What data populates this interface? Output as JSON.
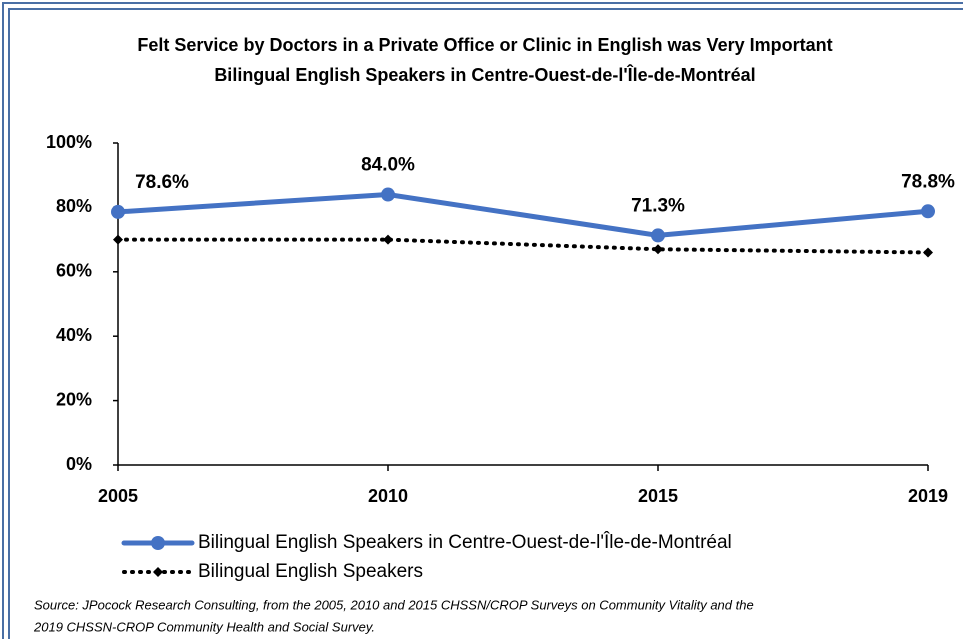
{
  "chart_data": {
    "type": "line",
    "title": "Felt Service by Doctors in a Private Office or Clinic in English was Very Important",
    "subtitle": "Bilingual English Speakers in Centre-Ouest-de-l'Île-de-Montréal",
    "categories": [
      "2005",
      "2010",
      "2015",
      "2019"
    ],
    "series": [
      {
        "name": "Bilingual English Speakers in Centre-Ouest-de-l'Île-de-Montréal",
        "color": "#4472c4",
        "style": "solid",
        "values": [
          78.6,
          84.0,
          71.3,
          78.8
        ],
        "value_labels": [
          "78.6%",
          "84.0%",
          "71.3%",
          "78.8%"
        ]
      },
      {
        "name": "Bilingual English Speakers",
        "color": "#000000",
        "style": "dotted",
        "values": [
          70,
          70,
          67,
          66
        ]
      }
    ],
    "ylim": [
      0,
      100
    ],
    "yticks": [
      {
        "value": 0,
        "label": "0%"
      },
      {
        "value": 20,
        "label": "20%"
      },
      {
        "value": 40,
        "label": "40%"
      },
      {
        "value": 60,
        "label": "60%"
      },
      {
        "value": 80,
        "label": "80%"
      },
      {
        "value": 100,
        "label": "100%"
      }
    ],
    "grid": false,
    "source": [
      "Source: JPocock Research Consulting, from the 2005, 2010  and 2015  CHSSN/CROP Surveys on Community Vitality and the",
      "2019  CHSSN-CROP Community Health and Social Survey."
    ]
  }
}
